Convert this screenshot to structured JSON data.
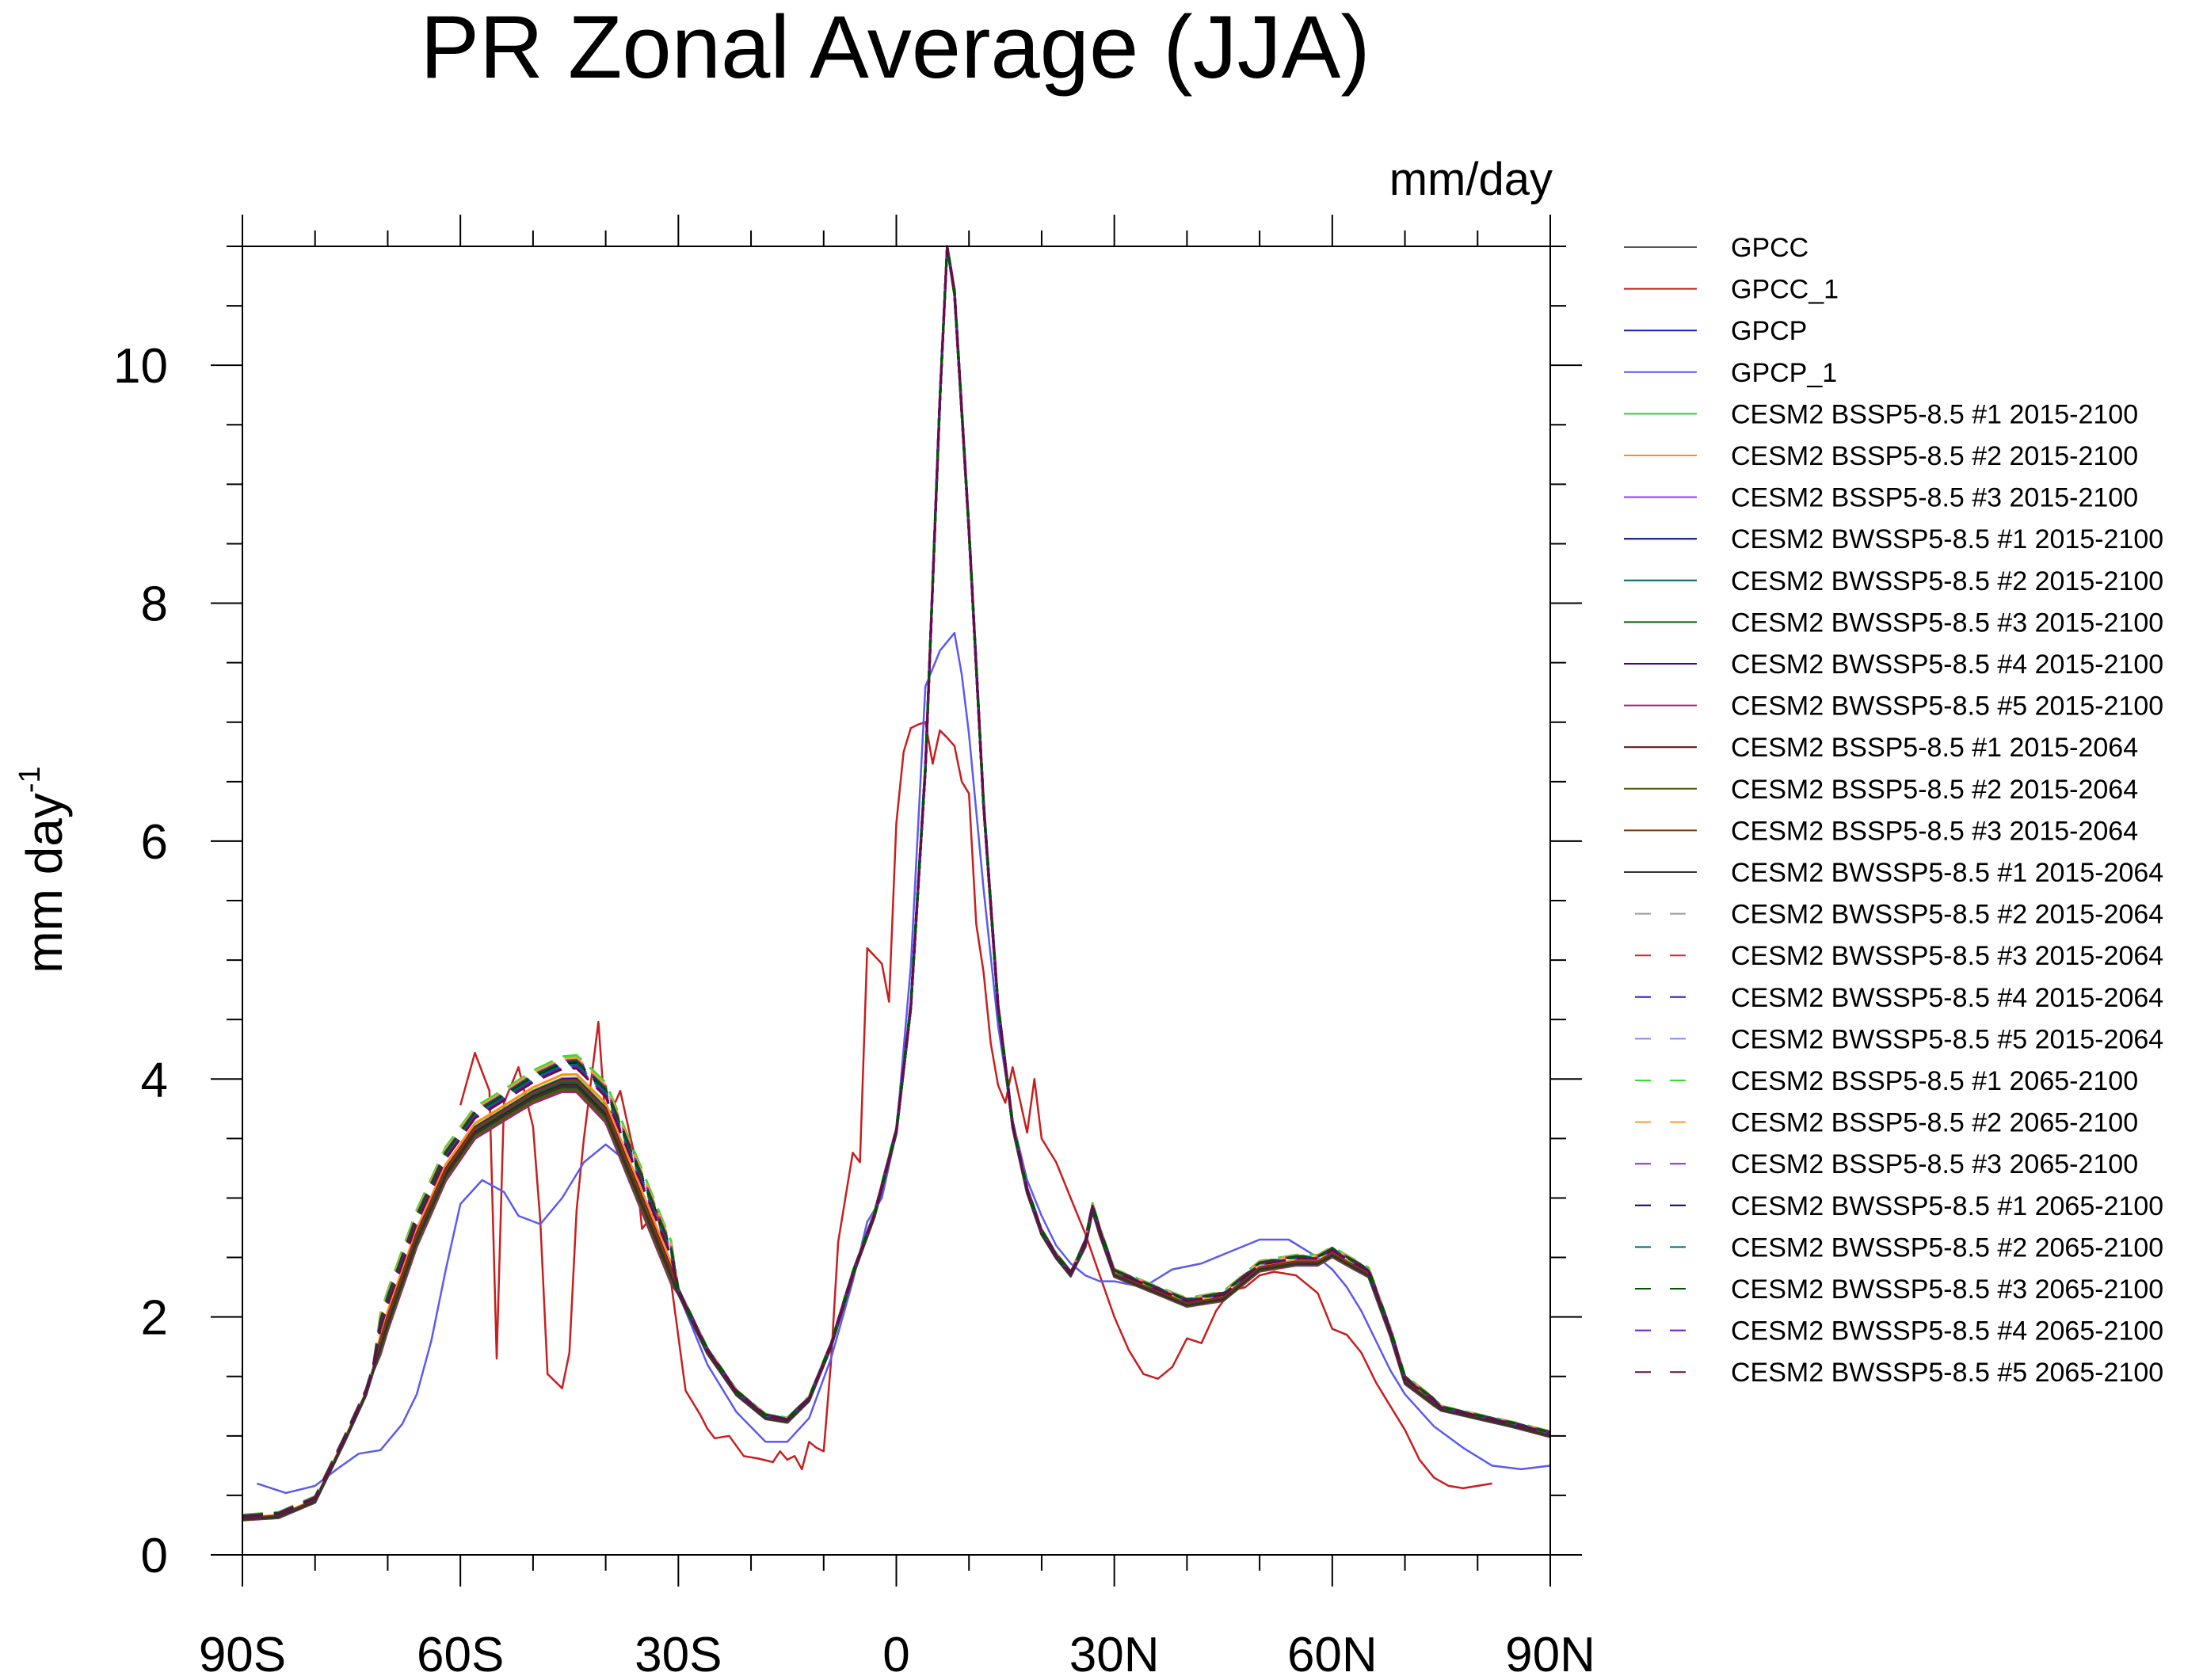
{
  "chart_data": {
    "type": "line",
    "title": "PR Zonal Average (JJA)",
    "units_label": "mm/day",
    "ylabel": "mm day",
    "ylabel_sup": "-1",
    "ylim": [
      0,
      11
    ],
    "xlim": [
      -90,
      90
    ],
    "x_ticks": [
      -90,
      -60,
      -30,
      0,
      30,
      60,
      90
    ],
    "x_tick_labels": [
      "90S",
      "60S",
      "30S",
      "0",
      "30N",
      "60N",
      "90N"
    ],
    "y_ticks": [
      0,
      2,
      4,
      6,
      8,
      10
    ],
    "y_tick_labels": [
      "0",
      "2",
      "4",
      "6",
      "8",
      "10"
    ],
    "model_base": {
      "x": [
        -90,
        -85,
        -80,
        -76,
        -73,
        -70,
        -66,
        -62,
        -58,
        -54,
        -50,
        -46,
        -44,
        -40,
        -36,
        -30,
        -26,
        -22,
        -18,
        -15,
        -12,
        -9,
        -6,
        -3,
        0,
        2,
        4,
        6,
        7,
        8,
        10,
        12,
        14,
        16,
        18,
        20,
        22,
        24,
        26,
        27,
        28,
        30,
        32,
        34,
        36,
        40,
        45,
        50,
        55,
        58,
        60,
        62,
        65,
        68,
        70,
        75,
        80,
        85,
        90
      ],
      "y": [
        0.3,
        0.32,
        0.45,
        0.95,
        1.35,
        1.95,
        2.65,
        3.2,
        3.55,
        3.7,
        3.85,
        3.95,
        3.95,
        3.7,
        3.1,
        2.2,
        1.7,
        1.35,
        1.15,
        1.12,
        1.3,
        1.75,
        2.35,
        2.85,
        3.55,
        4.6,
        6.6,
        9.7,
        11.0,
        10.6,
        8.6,
        6.3,
        4.6,
        3.6,
        3.05,
        2.7,
        2.5,
        2.35,
        2.6,
        2.9,
        2.7,
        2.35,
        2.3,
        2.25,
        2.2,
        2.1,
        2.15,
        2.4,
        2.45,
        2.45,
        2.52,
        2.45,
        2.35,
        1.85,
        1.45,
        1.22,
        1.15,
        1.08,
        1.0
      ]
    },
    "observations": {
      "GPCC_1": {
        "x": [
          -60,
          -58,
          -56,
          -55,
          -54,
          -52,
          -50,
          -49,
          -48,
          -46,
          -45,
          -44,
          -43,
          -41,
          -40,
          -38,
          -36,
          -35,
          -33,
          -31,
          -29,
          -27,
          -26,
          -25,
          -23,
          -21,
          -19,
          -17,
          -16,
          -15,
          -14,
          -13,
          -12,
          -11,
          -10,
          -9,
          -8,
          -6,
          -5,
          -4,
          -2,
          -1,
          0,
          1,
          2,
          3,
          4,
          5,
          6,
          7,
          8,
          9,
          10,
          11,
          12,
          13,
          14,
          15,
          16,
          18,
          19,
          20,
          22,
          24,
          26,
          28,
          30,
          32,
          34,
          36,
          38,
          40,
          42,
          44,
          46,
          48,
          50,
          52,
          55,
          58,
          60,
          62,
          64,
          66,
          68,
          70,
          72,
          74,
          76,
          78,
          80,
          82
        ],
        "y": [
          3.78,
          4.22,
          3.9,
          1.65,
          3.8,
          4.1,
          3.6,
          2.8,
          1.52,
          1.4,
          1.7,
          2.9,
          3.5,
          4.48,
          3.62,
          3.9,
          3.35,
          2.74,
          2.9,
          2.29,
          1.38,
          1.18,
          1.06,
          0.98,
          1.0,
          0.83,
          0.81,
          0.78,
          0.87,
          0.8,
          0.83,
          0.72,
          0.95,
          0.9,
          0.87,
          1.62,
          2.63,
          3.38,
          3.3,
          5.1,
          4.97,
          4.65,
          6.15,
          6.75,
          6.95,
          6.98,
          7.0,
          6.65,
          6.93,
          6.87,
          6.8,
          6.5,
          6.4,
          5.3,
          4.9,
          4.3,
          3.95,
          3.8,
          4.1,
          3.55,
          4.0,
          3.5,
          3.3,
          3.0,
          2.7,
          2.35,
          2.0,
          1.72,
          1.52,
          1.48,
          1.58,
          1.82,
          1.78,
          2.05,
          2.22,
          2.25,
          2.35,
          2.38,
          2.35,
          2.2,
          1.9,
          1.85,
          1.7,
          1.45,
          1.25,
          1.05,
          0.8,
          0.65,
          0.58,
          0.56,
          0.58,
          0.6
        ]
      },
      "GPCP_1": {
        "x": [
          -88,
          -84,
          -80,
          -77,
          -74,
          -71,
          -68,
          -66,
          -64,
          -62,
          -60,
          -57,
          -54,
          -52,
          -49,
          -46,
          -43,
          -40,
          -37,
          -34,
          -30,
          -26,
          -22,
          -18,
          -15,
          -12,
          -9,
          -6,
          -4,
          -2,
          0,
          2,
          4,
          6,
          8,
          9,
          10,
          12,
          14,
          16,
          18,
          20,
          22,
          24,
          26,
          28,
          30,
          34,
          38,
          42,
          46,
          50,
          54,
          58,
          60,
          62,
          64,
          66,
          68,
          70,
          74,
          78,
          82,
          86,
          90
        ],
        "y": [
          0.6,
          0.52,
          0.58,
          0.72,
          0.85,
          0.88,
          1.1,
          1.35,
          1.8,
          2.4,
          2.95,
          3.15,
          3.05,
          2.85,
          2.78,
          3.0,
          3.3,
          3.45,
          3.3,
          2.9,
          2.2,
          1.6,
          1.2,
          0.95,
          0.95,
          1.15,
          1.65,
          2.3,
          2.8,
          3.0,
          3.55,
          4.95,
          7.3,
          7.6,
          7.75,
          7.4,
          6.9,
          5.6,
          4.45,
          3.65,
          3.15,
          2.85,
          2.6,
          2.45,
          2.35,
          2.3,
          2.3,
          2.25,
          2.4,
          2.45,
          2.55,
          2.65,
          2.65,
          2.5,
          2.4,
          2.25,
          2.05,
          1.8,
          1.55,
          1.35,
          1.08,
          0.9,
          0.75,
          0.72,
          0.75
        ]
      }
    },
    "series": [
      {
        "name": "GPCC",
        "color": "#555555",
        "dash": "solid",
        "kind": "model",
        "offset": 0.0
      },
      {
        "name": "GPCC_1",
        "color": "#c81e1e",
        "dash": "solid",
        "kind": "obs"
      },
      {
        "name": "GPCP",
        "color": "#1a1acd",
        "dash": "solid",
        "kind": "model",
        "offset": -0.03
      },
      {
        "name": "GPCP_1",
        "color": "#5a5af0",
        "dash": "solid",
        "kind": "obs"
      },
      {
        "name": "CESM2 BSSP5-8.5 #1 2015-2100",
        "color": "#2ed12e",
        "dash": "solid",
        "kind": "model",
        "offset": 0.06
      },
      {
        "name": "CESM2 BSSP5-8.5 #2 2015-2100",
        "color": "#ff8c1a",
        "dash": "solid",
        "kind": "model",
        "offset": 0.09
      },
      {
        "name": "CESM2 BSSP5-8.5 #3 2015-2100",
        "color": "#9b30ff",
        "dash": "solid",
        "kind": "model",
        "offset": 0.03
      },
      {
        "name": "CESM2 BWSSP5-8.5 #1 2015-2100",
        "color": "#000080",
        "dash": "solid",
        "kind": "model",
        "offset": -0.05
      },
      {
        "name": "CESM2 BWSSP5-8.5 #2 2015-2100",
        "color": "#006060",
        "dash": "solid",
        "kind": "model",
        "offset": 0.02
      },
      {
        "name": "CESM2 BWSSP5-8.5 #3 2015-2100",
        "color": "#006400",
        "dash": "solid",
        "kind": "model",
        "offset": -0.02
      },
      {
        "name": "CESM2 BWSSP5-8.5 #4 2015-2100",
        "color": "#4b0082",
        "dash": "solid",
        "kind": "model",
        "offset": 0.05
      },
      {
        "name": "CESM2 BWSSP5-8.5 #5 2015-2100",
        "color": "#a0207a",
        "dash": "solid",
        "kind": "model",
        "offset": -0.06
      },
      {
        "name": "CESM2 BSSP5-8.5 #1 2015-2064",
        "color": "#5a0a0a",
        "dash": "solid",
        "kind": "model",
        "offset": 0.0
      },
      {
        "name": "CESM2 BSSP5-8.5 #2 2015-2064",
        "color": "#4f5a0a",
        "dash": "solid",
        "kind": "model",
        "offset": -0.04
      },
      {
        "name": "CESM2 BSSP5-8.5 #3 2015-2064",
        "color": "#7a3a0a",
        "dash": "solid",
        "kind": "model",
        "offset": 0.04
      },
      {
        "name": "CESM2 BWSSP5-8.5 #1 2015-2064",
        "color": "#333333",
        "dash": "solid",
        "kind": "model",
        "offset": -0.01
      },
      {
        "name": "CESM2 BWSSP5-8.5 #2 2015-2064",
        "color": "#999999",
        "dash": "dashed",
        "kind": "model",
        "offset": 0.2
      },
      {
        "name": "CESM2 BWSSP5-8.5 #3 2015-2064",
        "color": "#dd2222",
        "dash": "dashed",
        "kind": "model",
        "offset": 0.22
      },
      {
        "name": "CESM2 BWSSP5-8.5 #4 2015-2064",
        "color": "#2222cc",
        "dash": "dashed",
        "kind": "model",
        "offset": 0.18
      },
      {
        "name": "CESM2 BWSSP5-8.5 #5 2015-2064",
        "color": "#8888ee",
        "dash": "dashed",
        "kind": "model",
        "offset": 0.16
      },
      {
        "name": "CESM2 BSSP5-8.5 #1 2065-2100",
        "color": "#33dd33",
        "dash": "dashed",
        "kind": "model",
        "offset": 0.25
      },
      {
        "name": "CESM2 BSSP5-8.5 #2 2065-2100",
        "color": "#ff9933",
        "dash": "dashed",
        "kind": "model",
        "offset": 0.23
      },
      {
        "name": "CESM2 BSSP5-8.5 #3 2065-2100",
        "color": "#8a2be2",
        "dash": "dashed",
        "kind": "model",
        "offset": 0.21
      },
      {
        "name": "CESM2 BWSSP5-8.5 #1 2065-2100",
        "color": "#000070",
        "dash": "dashed",
        "kind": "model",
        "offset": 0.19
      },
      {
        "name": "CESM2 BWSSP5-8.5 #2 2065-2100",
        "color": "#006a6a",
        "dash": "dashed",
        "kind": "model",
        "offset": 0.17
      },
      {
        "name": "CESM2 BWSSP5-8.5 #3 2065-2100",
        "color": "#005500",
        "dash": "dashed",
        "kind": "model",
        "offset": 0.2
      },
      {
        "name": "CESM2 BWSSP5-8.5 #4 2065-2100",
        "color": "#6a1ad0",
        "dash": "dashed",
        "kind": "model",
        "offset": 0.15
      },
      {
        "name": "CESM2 BWSSP5-8.5 #5 2065-2100",
        "color": "#6a0a4a",
        "dash": "dashed",
        "kind": "model",
        "offset": 0.14
      }
    ]
  }
}
